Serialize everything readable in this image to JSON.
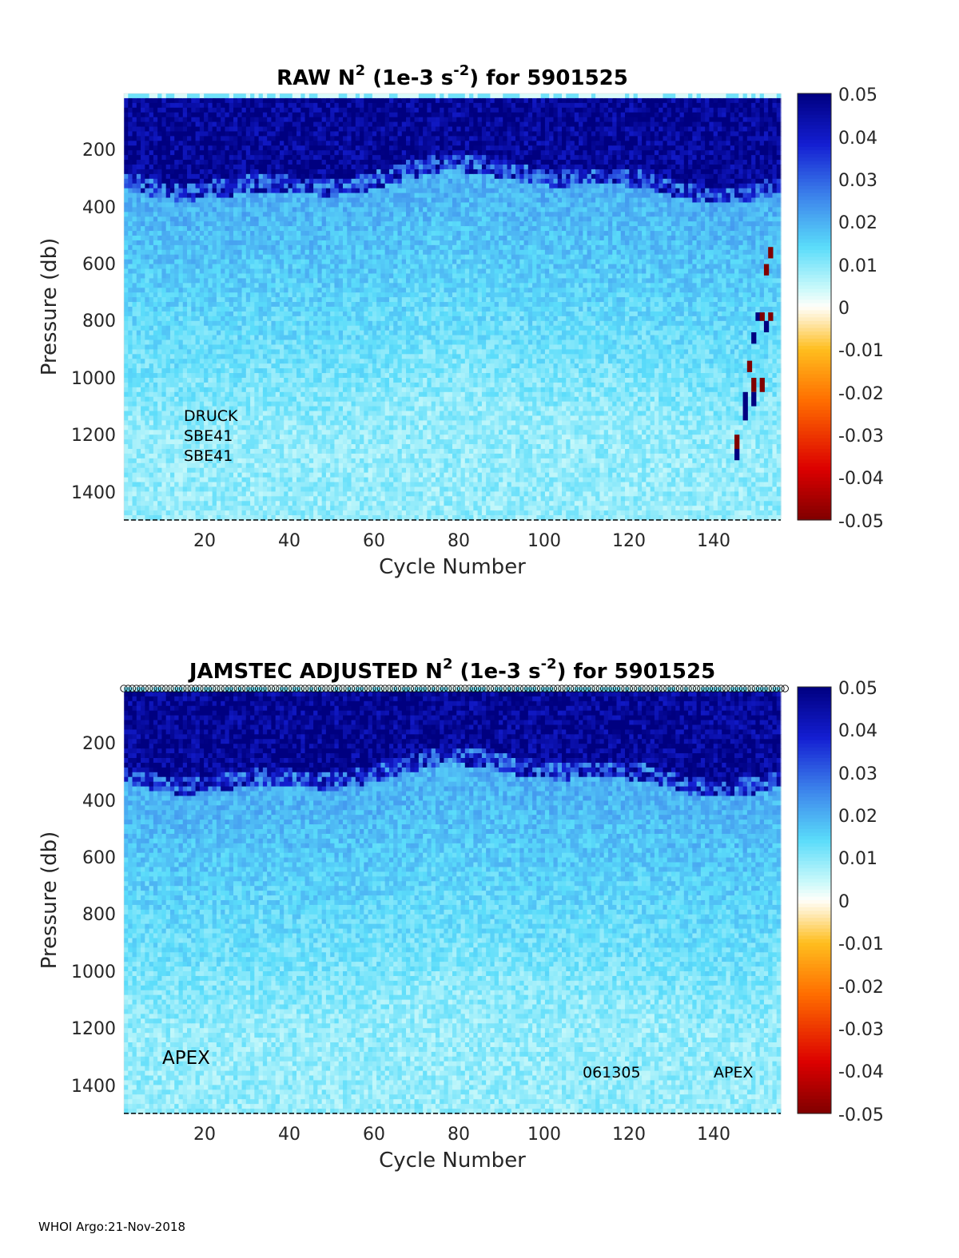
{
  "chart_data": [
    {
      "type": "heatmap",
      "title_pre": "RAW N",
      "title_sup": "2",
      "title_mid": " (1e-3 s",
      "title_sup2": "-2",
      "title_post": ") for 5901525",
      "xlabel": "Cycle Number",
      "ylabel": "Pressure (db)",
      "xlim": [
        1,
        156
      ],
      "ylim": [
        1500,
        0
      ],
      "x_ticks": [
        "20",
        "40",
        "60",
        "80",
        "100",
        "120",
        "140"
      ],
      "y_ticks": [
        "200",
        "400",
        "600",
        "800",
        "1000",
        "1200",
        "1400"
      ],
      "colorbar": {
        "min": -0.05,
        "max": 0.05,
        "ticks": [
          "0.05",
          "0.04",
          "0.03",
          "0.02",
          "0.01",
          "0",
          "-0.01",
          "-0.02",
          "-0.03",
          "-0.04",
          "-0.05"
        ]
      },
      "annotations": [
        "DRUCK",
        "SBE41",
        "SBE41"
      ],
      "description_values": {
        "surface_layer_n2": 0.05,
        "deep_n2": 0.008
      },
      "spikes": [
        {
          "cycle": 146,
          "p_from": 1200,
          "p_to": 1250,
          "value": -0.05
        },
        {
          "cycle": 146,
          "p_from": 1250,
          "p_to": 1290,
          "value": 0.05
        },
        {
          "cycle": 148,
          "p_from": 1050,
          "p_to": 1150,
          "value": 0.05
        },
        {
          "cycle": 149,
          "p_from": 940,
          "p_to": 980,
          "value": -0.05
        },
        {
          "cycle": 150,
          "p_from": 1000,
          "p_to": 1050,
          "value": -0.05
        },
        {
          "cycle": 150,
          "p_from": 1050,
          "p_to": 1100,
          "value": 0.05
        },
        {
          "cycle": 150,
          "p_from": 840,
          "p_to": 880,
          "value": 0.05
        },
        {
          "cycle": 151,
          "p_from": 770,
          "p_to": 800,
          "value": 0.05
        },
        {
          "cycle": 152,
          "p_from": 770,
          "p_to": 800,
          "value": -0.05
        },
        {
          "cycle": 152,
          "p_from": 1000,
          "p_to": 1050,
          "value": -0.05
        },
        {
          "cycle": 153,
          "p_from": 800,
          "p_to": 840,
          "value": 0.05
        },
        {
          "cycle": 153,
          "p_from": 600,
          "p_to": 640,
          "value": -0.05
        },
        {
          "cycle": 154,
          "p_from": 770,
          "p_to": 800,
          "value": -0.05
        },
        {
          "cycle": 154,
          "p_from": 540,
          "p_to": 580,
          "value": -0.05
        }
      ]
    },
    {
      "type": "heatmap",
      "title_pre": "JAMSTEC  ADJUSTED N",
      "title_sup": "2",
      "title_mid": " (1e-3 s",
      "title_sup2": "-2",
      "title_post": ") for 5901525",
      "xlabel": "Cycle Number",
      "ylabel": "Pressure (db)",
      "xlim": [
        1,
        156
      ],
      "ylim": [
        1500,
        0
      ],
      "x_ticks": [
        "20",
        "40",
        "60",
        "80",
        "100",
        "120",
        "140"
      ],
      "y_ticks": [
        "200",
        "400",
        "600",
        "800",
        "1000",
        "1200",
        "1400"
      ],
      "colorbar": {
        "min": -0.05,
        "max": 0.05,
        "ticks": [
          "0.05",
          "0.04",
          "0.03",
          "0.02",
          "0.01",
          "0",
          "-0.01",
          "-0.02",
          "-0.03",
          "-0.04",
          "-0.05"
        ]
      },
      "annotations": [
        "APEX",
        "061305",
        "APEX"
      ],
      "description_values": {
        "surface_layer_n2": 0.05,
        "deep_n2": 0.008
      },
      "spikes": []
    }
  ],
  "footer": "WHOI Argo:21-Nov-2018"
}
